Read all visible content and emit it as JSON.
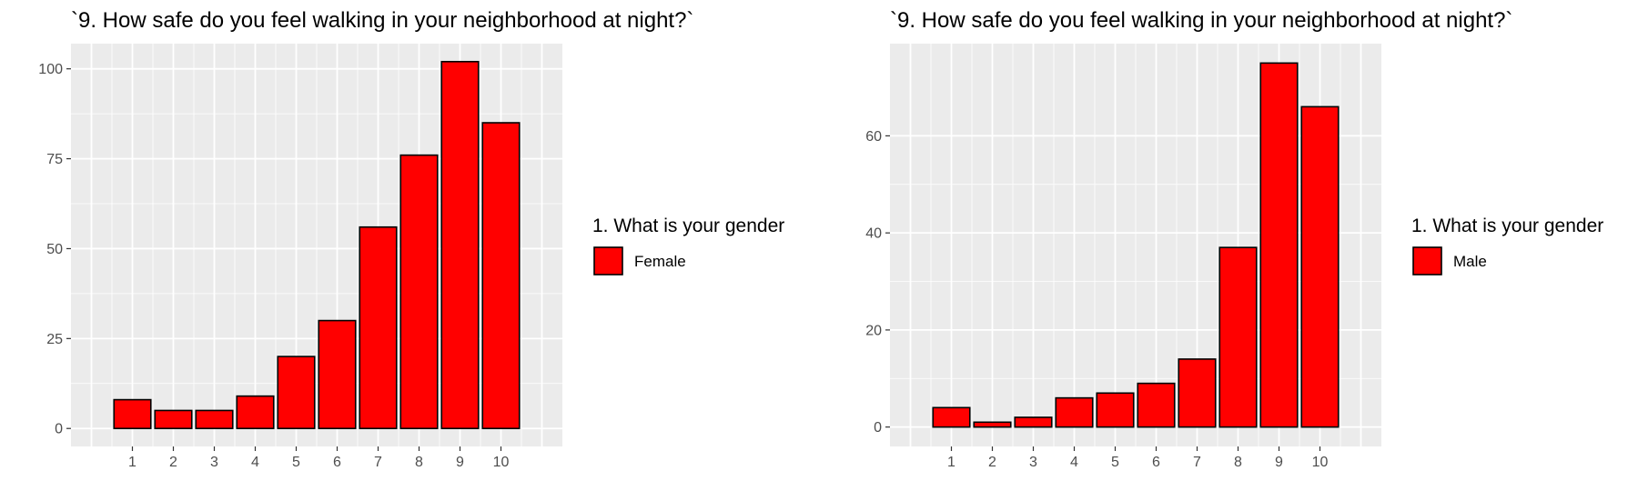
{
  "chart_data": [
    {
      "type": "bar",
      "title": "`9. How safe do you feel walking in your neighborhood at night?`",
      "xlabel": "",
      "ylabel": "",
      "categories": [
        "1",
        "2",
        "3",
        "4",
        "5",
        "6",
        "7",
        "8",
        "9",
        "10"
      ],
      "series": [
        {
          "name": "Female",
          "values": [
            8,
            5,
            5,
            9,
            20,
            30,
            56,
            76,
            102,
            85
          ]
        }
      ],
      "xlim": [
        -0.5,
        11.5
      ],
      "ylim": [
        -5,
        107
      ],
      "yticks": [
        0,
        25,
        50,
        75,
        100
      ],
      "grid": true,
      "legend": {
        "title": "1. What is your gender",
        "position": "right"
      },
      "colors": {
        "bar_fill": "#ff0000",
        "bar_outline": "#000000",
        "panel_bg": "#ebebeb",
        "grid": "#ffffff"
      }
    },
    {
      "type": "bar",
      "title": "`9. How safe do you feel walking in your neighborhood at night?`",
      "xlabel": "",
      "ylabel": "",
      "categories": [
        "1",
        "2",
        "3",
        "4",
        "5",
        "6",
        "7",
        "8",
        "9",
        "10"
      ],
      "series": [
        {
          "name": "Male",
          "values": [
            4,
            1,
            2,
            6,
            7,
            9,
            14,
            37,
            75,
            66
          ]
        }
      ],
      "xlim": [
        -0.5,
        11.5
      ],
      "ylim": [
        -4,
        79
      ],
      "yticks": [
        0,
        20,
        40,
        60
      ],
      "grid": true,
      "legend": {
        "title": "1. What is your gender",
        "position": "right"
      },
      "colors": {
        "bar_fill": "#ff0000",
        "bar_outline": "#000000",
        "panel_bg": "#ebebeb",
        "grid": "#ffffff"
      }
    }
  ]
}
